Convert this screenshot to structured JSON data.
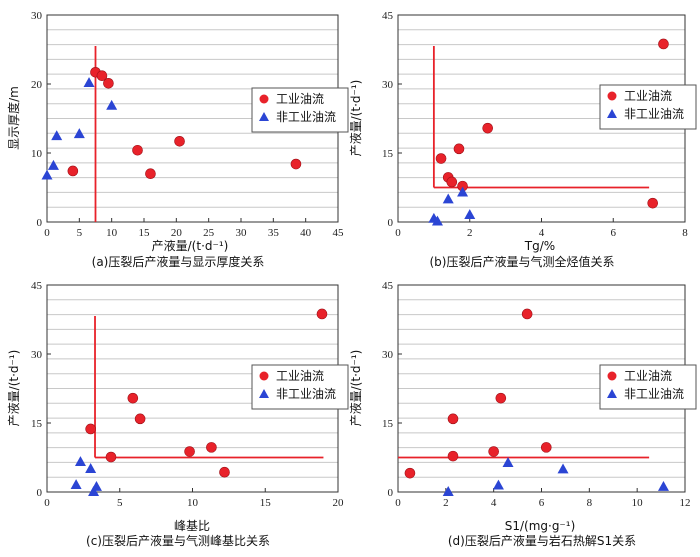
{
  "chart_data": [
    {
      "type": "scatter",
      "caption": "(a)压裂后产液量与显示厚度关系",
      "xlabel": "产液量/(t·d⁻¹)",
      "ylabel": "显示厚度/m",
      "xlim": [
        0,
        45
      ],
      "ylim": [
        0,
        30
      ],
      "xticks": [
        0,
        5,
        10,
        15,
        20,
        25,
        30,
        35,
        40,
        45
      ],
      "yticks": [
        0,
        10,
        20,
        30
      ],
      "grid": "horizontal",
      "legend_position": "center-right",
      "threshold": {
        "x": 7.5
      },
      "series": [
        {
          "name": "工业油流",
          "marker": "circle",
          "color": "#e8222a",
          "points": [
            [
              4,
              7.4
            ],
            [
              7.5,
              21.7
            ],
            [
              8.5,
              21.2
            ],
            [
              9.5,
              20.1
            ],
            [
              14,
              10.4
            ],
            [
              16,
              7
            ],
            [
              20.5,
              11.7
            ],
            [
              38.5,
              8.4
            ]
          ]
        },
        {
          "name": "非工业油流",
          "marker": "triangle",
          "color": "#2b45d4",
          "points": [
            [
              0,
              6.8
            ],
            [
              1,
              8.2
            ],
            [
              1.5,
              12.5
            ],
            [
              5,
              12.8
            ],
            [
              6.5,
              20.2
            ],
            [
              10,
              16.9
            ]
          ]
        }
      ]
    },
    {
      "type": "scatter",
      "caption": "(b)压裂后产液量与气测全烃值关系",
      "xlabel": "Tg/%",
      "ylabel": "产液量/(t·d⁻¹)",
      "xlim": [
        0,
        8
      ],
      "ylim": [
        0,
        45
      ],
      "xticks": [
        0,
        2,
        4,
        6,
        8
      ],
      "yticks": [
        0,
        15,
        30,
        45
      ],
      "grid": "horizontal",
      "legend_position": "center-right",
      "threshold": {
        "x": 1.0,
        "y": 7.5,
        "y_line_x_end": 7.0
      },
      "series": [
        {
          "name": "工业油流",
          "marker": "circle",
          "color": "#e8222a",
          "points": [
            [
              1.2,
              13.8
            ],
            [
              1.4,
              9.7
            ],
            [
              1.5,
              8.7
            ],
            [
              1.7,
              15.9
            ],
            [
              1.8,
              7.8
            ],
            [
              2.5,
              20.4
            ],
            [
              7.1,
              4.1
            ],
            [
              7.4,
              38.7
            ]
          ]
        },
        {
          "name": "非工业油流",
          "marker": "triangle",
          "color": "#2b45d4",
          "points": [
            [
              1.0,
              0.8
            ],
            [
              1.1,
              0.2
            ],
            [
              1.4,
              5
            ],
            [
              1.8,
              6.5
            ],
            [
              2.0,
              1.6
            ]
          ]
        }
      ]
    },
    {
      "type": "scatter",
      "caption": "(c)压裂后产液量与气测峰基比关系",
      "xlabel": "峰基比",
      "ylabel": "产液量/(t·d⁻¹)",
      "xlim": [
        0,
        20
      ],
      "ylim": [
        0,
        45
      ],
      "xticks": [
        0,
        5,
        10,
        15,
        20
      ],
      "yticks": [
        0,
        15,
        30,
        45
      ],
      "grid": "horizontal",
      "legend_position": "center-right",
      "threshold": {
        "x": 3.3,
        "y": 7.5,
        "y_line_x_end": 19
      },
      "series": [
        {
          "name": "工业油流",
          "marker": "circle",
          "color": "#e8222a",
          "points": [
            [
              3,
              13.7
            ],
            [
              4.4,
              7.6
            ],
            [
              5.9,
              20.4
            ],
            [
              6.4,
              15.9
            ],
            [
              9.8,
              8.8
            ],
            [
              11.3,
              9.7
            ],
            [
              12.2,
              4.3
            ],
            [
              18.9,
              38.7
            ]
          ]
        },
        {
          "name": "非工业油流",
          "marker": "triangle",
          "color": "#2b45d4",
          "points": [
            [
              2.0,
              1.6
            ],
            [
              2.3,
              6.6
            ],
            [
              3.0,
              5.1
            ],
            [
              3.2,
              0.1
            ],
            [
              3.4,
              1.2
            ]
          ]
        }
      ]
    },
    {
      "type": "scatter",
      "caption": "(d)压裂后产液量与岩石热解S1关系",
      "xlabel": "S1/(mg·g⁻¹)",
      "ylabel": "产液量/(t·d⁻¹)",
      "xlim": [
        0,
        12
      ],
      "ylim": [
        0,
        45
      ],
      "xticks": [
        0,
        2,
        4,
        6,
        8,
        10,
        12
      ],
      "yticks": [
        0,
        15,
        30,
        45
      ],
      "grid": "horizontal",
      "legend_position": "center-right",
      "threshold": {
        "y": 7.5,
        "y_line_x_end": 10.5
      },
      "series": [
        {
          "name": "工业油流",
          "marker": "circle",
          "color": "#e8222a",
          "points": [
            [
              0.5,
              4.1
            ],
            [
              2.3,
              7.8
            ],
            [
              2.3,
              15.9
            ],
            [
              4.0,
              8.8
            ],
            [
              4.3,
              20.4
            ],
            [
              5.4,
              38.7
            ],
            [
              6.2,
              9.7
            ]
          ]
        },
        {
          "name": "非工业油流",
          "marker": "triangle",
          "color": "#2b45d4",
          "points": [
            [
              2.1,
              0.1
            ],
            [
              4.2,
              1.5
            ],
            [
              4.6,
              6.4
            ],
            [
              6.9,
              5
            ],
            [
              11.1,
              1.2
            ]
          ]
        }
      ]
    }
  ]
}
